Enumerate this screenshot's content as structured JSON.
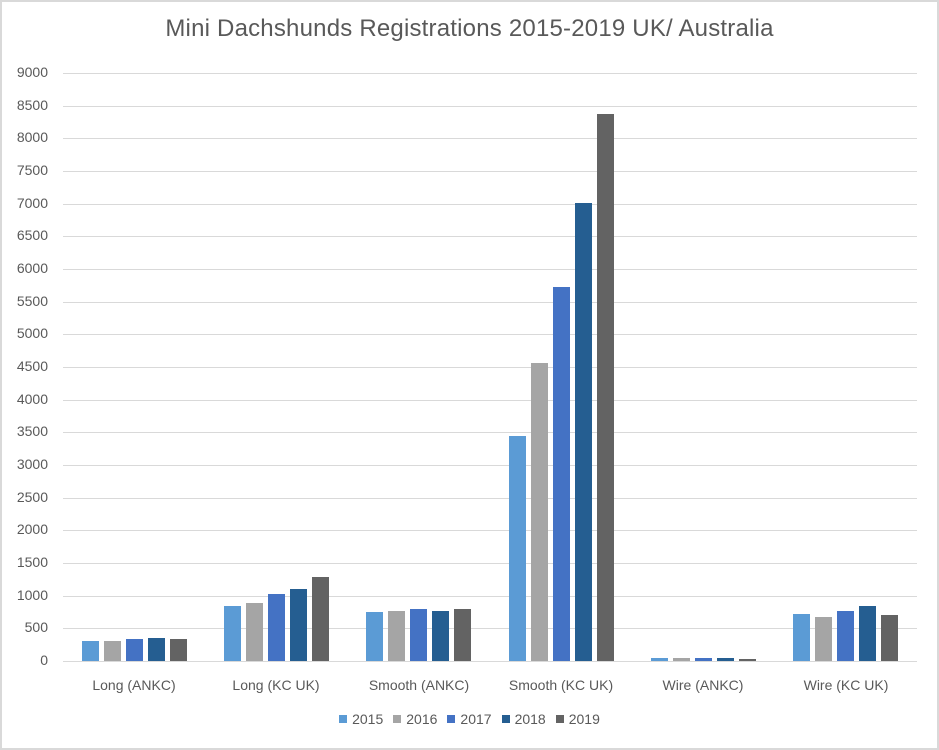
{
  "chart_data": {
    "type": "bar",
    "title": "Mini Dachshunds Registrations 2015-2019 UK/ Australia",
    "xlabel": "",
    "ylabel": "",
    "ylim": [
      0,
      9000
    ],
    "yticks": [
      0,
      500,
      1000,
      1500,
      2000,
      2500,
      3000,
      3500,
      4000,
      4500,
      5000,
      5500,
      6000,
      6500,
      7000,
      7500,
      8000,
      8500,
      9000
    ],
    "grid": true,
    "legend_position": "bottom",
    "categories": [
      "Long (ANKC)",
      "Long (KC UK)",
      "Smooth (ANKC)",
      "Smooth (KC UK)",
      "Wire (ANKC)",
      "Wire (KC UK)"
    ],
    "series": [
      {
        "name": "2015",
        "color": "#5B9BD5",
        "values": [
          300,
          840,
          745,
          3450,
          45,
          715
        ]
      },
      {
        "name": "2016",
        "color": "#A5A5A5",
        "values": [
          310,
          895,
          760,
          4560,
          45,
          675
        ]
      },
      {
        "name": "2017",
        "color": "#4472C4",
        "values": [
          340,
          1020,
          795,
          5720,
          45,
          770
        ]
      },
      {
        "name": "2018",
        "color": "#255E91",
        "values": [
          350,
          1100,
          770,
          7005,
          45,
          840
        ]
      },
      {
        "name": "2019",
        "color": "#636363",
        "values": [
          340,
          1280,
          795,
          8370,
          30,
          700
        ]
      }
    ]
  }
}
